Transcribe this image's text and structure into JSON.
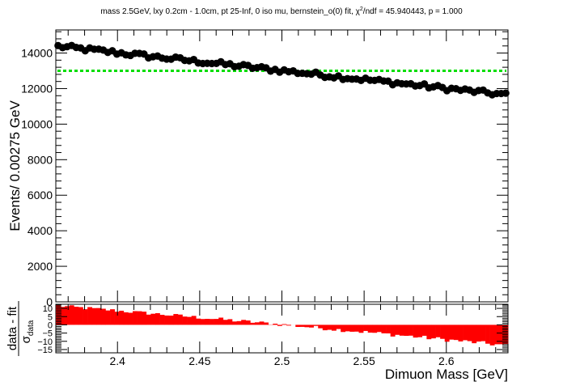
{
  "chart_data": [
    {
      "type": "scatter",
      "title": "mass 2.5GeV, lxy 0.2cm - 1.0cm, pt 25-Inf, 0 iso mu, bernstein_o(0) fit, χ²/ndf = 45.940443, p = 1.000",
      "title_parts": {
        "before": "mass 2.5GeV, lxy 0.2cm - 1.0cm, pt 25-Inf, 0 iso mu, bernstein_o(0) fit, χ",
        "sup": "2",
        "after": "/ndf = 45.940443, p = 1.000"
      },
      "ylabel": "Events/ 0.00275 GeV",
      "xlim": [
        2.3625,
        2.6375
      ],
      "ylim": [
        0,
        15300
      ],
      "y_ticks": [
        0,
        2000,
        4000,
        6000,
        8000,
        10000,
        12000,
        14000
      ],
      "y_tick_labels": [
        "0",
        "2000",
        "4000",
        "6000",
        "8000",
        "10000",
        "12000",
        "14000"
      ],
      "data_start": 14380,
      "data_end": 11650,
      "fit_value": 13000,
      "fit_color": "#00dd00",
      "marker_color": "#000000",
      "n_bins": 100
    },
    {
      "type": "bar",
      "ylabel_num": "data - fit",
      "ylabel_den": "σ",
      "ylabel_den_sub": "data",
      "xlabel": "Dimuon Mass [GeV]",
      "xlim": [
        2.3625,
        2.6375
      ],
      "ylim": [
        -17,
        12.5
      ],
      "y_ticks": [
        -15,
        -10,
        -5,
        0,
        5,
        10
      ],
      "y_tick_labels": [
        "−15",
        "−10",
        "−5",
        "0",
        "5",
        "10"
      ],
      "x_ticks": [
        2.4,
        2.45,
        2.5,
        2.55,
        2.6
      ],
      "x_tick_labels": [
        "2.4",
        "2.45",
        "2.5",
        "2.55",
        "2.6"
      ],
      "bar_color": "#ff0000",
      "pull_start": 10.2,
      "pull_end": -14.6
    }
  ]
}
